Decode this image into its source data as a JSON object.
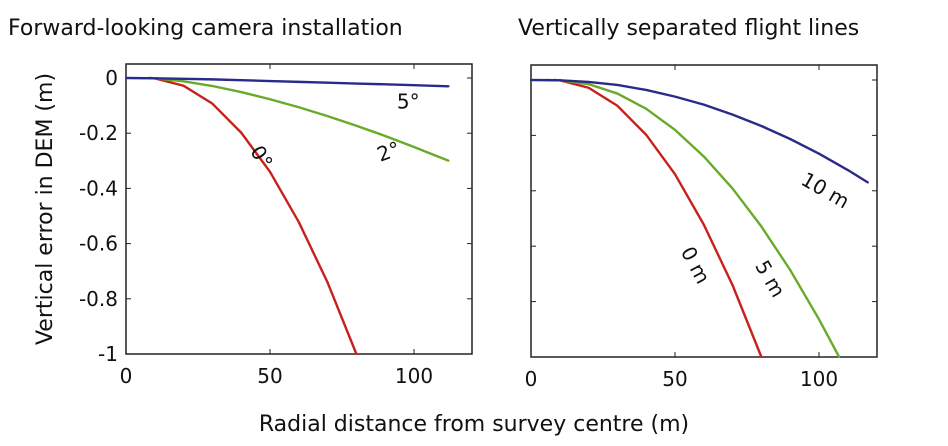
{
  "chart_data": [
    {
      "type": "scatter",
      "title": "Forward-looking camera installation",
      "xlabel": "Radial distance from survey centre (m)",
      "ylabel": "Vertical error in DEM (m)",
      "xlim": [
        0,
        120
      ],
      "ylim": [
        -1,
        0.05
      ],
      "xticks": [
        "0",
        "50",
        "100"
      ],
      "xtick_values": [
        0,
        50,
        100
      ],
      "yticks": [
        "0",
        "-0.2",
        "-0.4",
        "-0.6",
        "-0.8",
        "-1"
      ],
      "ytick_values": [
        0,
        -0.2,
        -0.4,
        -0.6,
        -0.8,
        -1
      ],
      "grid": false,
      "series": [
        {
          "name": "0°",
          "color": "#c8201a",
          "x": [
            8,
            10,
            20,
            30,
            40,
            50,
            60,
            70,
            80
          ],
          "y": [
            0,
            -0.001,
            -0.028,
            -0.093,
            -0.198,
            -0.34,
            -0.522,
            -0.741,
            -1.0
          ],
          "label_at": [
            45,
            -0.3
          ],
          "label_angle": 58
        },
        {
          "name": "2°",
          "color": "#6aaa2a",
          "x": [
            8,
            10,
            20,
            30,
            40,
            50,
            60,
            70,
            80,
            90,
            100,
            112
          ],
          "y": [
            0,
            -0.001,
            -0.012,
            -0.029,
            -0.051,
            -0.077,
            -0.106,
            -0.138,
            -0.173,
            -0.21,
            -0.25,
            -0.3
          ],
          "label_at": [
            92,
            -0.29
          ],
          "label_angle": -20
        },
        {
          "name": "5°",
          "color": "#2a2a8a",
          "x": [
            0,
            10,
            20,
            30,
            40,
            50,
            60,
            70,
            80,
            90,
            100,
            112
          ],
          "y": [
            0,
            -0.001,
            -0.003,
            -0.005,
            -0.008,
            -0.011,
            -0.014,
            -0.017,
            -0.02,
            -0.023,
            -0.026,
            -0.03
          ],
          "label_at": [
            98,
            -0.11
          ],
          "label_angle": 0
        }
      ]
    },
    {
      "type": "scatter",
      "title": "Vertically separated flight lines",
      "xlabel": "Radial distance from survey centre (m)",
      "xlim": [
        0,
        120
      ],
      "ylim": [
        -1,
        0.05
      ],
      "xticks": [
        "0",
        "50",
        "100"
      ],
      "xtick_values": [
        0,
        50,
        100
      ],
      "ytick_values": [
        0,
        -0.2,
        -0.4,
        -0.6,
        -0.8,
        -1
      ],
      "grid": false,
      "series": [
        {
          "name": "0 m",
          "color": "#c8201a",
          "x": [
            8,
            10,
            20,
            30,
            40,
            50,
            60,
            70,
            80
          ],
          "y": [
            0,
            -0.001,
            -0.028,
            -0.093,
            -0.198,
            -0.34,
            -0.522,
            -0.741,
            -1.0
          ],
          "label_at": [
            55,
            -0.68
          ],
          "label_angle": 62
        },
        {
          "name": "5 m",
          "color": "#6aaa2a",
          "x": [
            5,
            10,
            20,
            30,
            40,
            50,
            60,
            70,
            80,
            90,
            100,
            107
          ],
          "y": [
            0,
            -0.001,
            -0.015,
            -0.049,
            -0.104,
            -0.18,
            -0.276,
            -0.392,
            -0.529,
            -0.686,
            -0.864,
            -1.0
          ],
          "label_at": [
            81,
            -0.73
          ],
          "label_angle": 60
        },
        {
          "name": "10 m",
          "color": "#2a2a8a",
          "x": [
            0,
            10,
            20,
            30,
            40,
            50,
            60,
            70,
            80,
            90,
            100,
            110,
            117
          ],
          "y": [
            0,
            -0.001,
            -0.007,
            -0.018,
            -0.036,
            -0.06,
            -0.089,
            -0.125,
            -0.166,
            -0.213,
            -0.266,
            -0.325,
            -0.37
          ],
          "label_at": [
            101,
            -0.42
          ],
          "label_angle": 30
        }
      ]
    }
  ]
}
